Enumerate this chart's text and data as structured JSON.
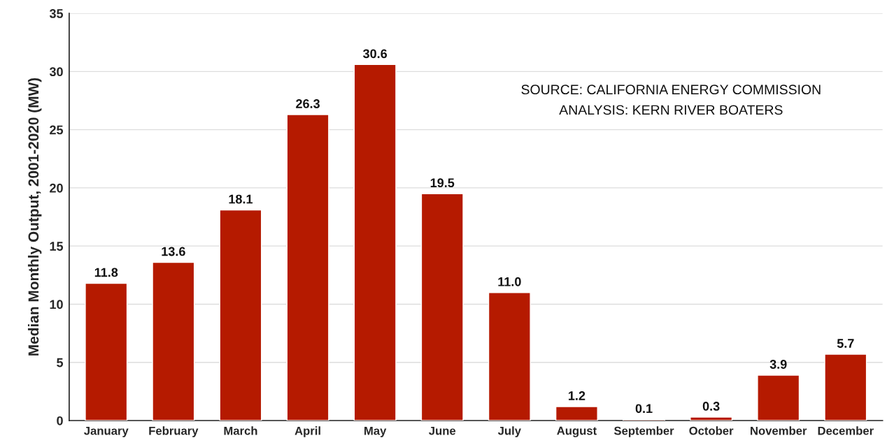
{
  "chart_data": {
    "type": "bar",
    "ylabel": "Median Monthly Output, 2001-2020 (MW)",
    "categories": [
      "January",
      "February",
      "March",
      "April",
      "May",
      "June",
      "July",
      "August",
      "September",
      "October",
      "November",
      "December"
    ],
    "values": [
      11.8,
      13.6,
      18.1,
      26.3,
      30.6,
      19.5,
      11.0,
      1.2,
      0.1,
      0.3,
      3.9,
      5.7
    ],
    "value_labels": [
      "11.8",
      "13.6",
      "18.1",
      "26.3",
      "30.6",
      "19.5",
      "11.0",
      "1.2",
      "0.1",
      "0.3",
      "3.9",
      "5.7"
    ],
    "color": "#b51a00",
    "ylim": [
      0,
      35
    ],
    "yticks": [
      0,
      5,
      10,
      15,
      20,
      25,
      30,
      35
    ],
    "grid": "y",
    "annotations": [
      "SOURCE: CALIFORNIA ENERGY COMMISSION",
      "ANALYSIS: KERN RIVER BOATERS"
    ]
  }
}
